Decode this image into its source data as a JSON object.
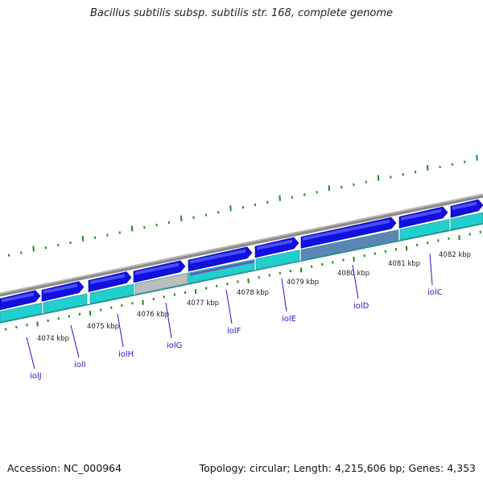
{
  "title": "Bacillus subtilis subsp. subtilis str. 168, complete genome",
  "footer": {
    "accession": "Accession: NC_000964",
    "summary": "Topology: circular; Length: 4,215,606 bp; Genes: 4,353"
  },
  "colors": {
    "background": "#ffffff",
    "backbone": "#8a8a8a",
    "forward_cds": "#1010e0",
    "gene_track": "#22cfcf",
    "selected_gene": "#bdbdbd",
    "highlight_gene": "#5b86b4",
    "tick": "#1f8a1f",
    "label_line": "#1a1acc"
  },
  "map": {
    "scale_labels": [
      "4074 kbp",
      "4075 kbp",
      "4076 kbp",
      "4077 kbp",
      "4078 kbp",
      "4079 kbp",
      "4080 kbp",
      "4081 kbp",
      "4082 kbp"
    ],
    "gene_labels": [
      "iolJ",
      "iolI",
      "iolH",
      "iolG",
      "iolF",
      "iolE",
      "iolD",
      "iolC"
    ]
  }
}
